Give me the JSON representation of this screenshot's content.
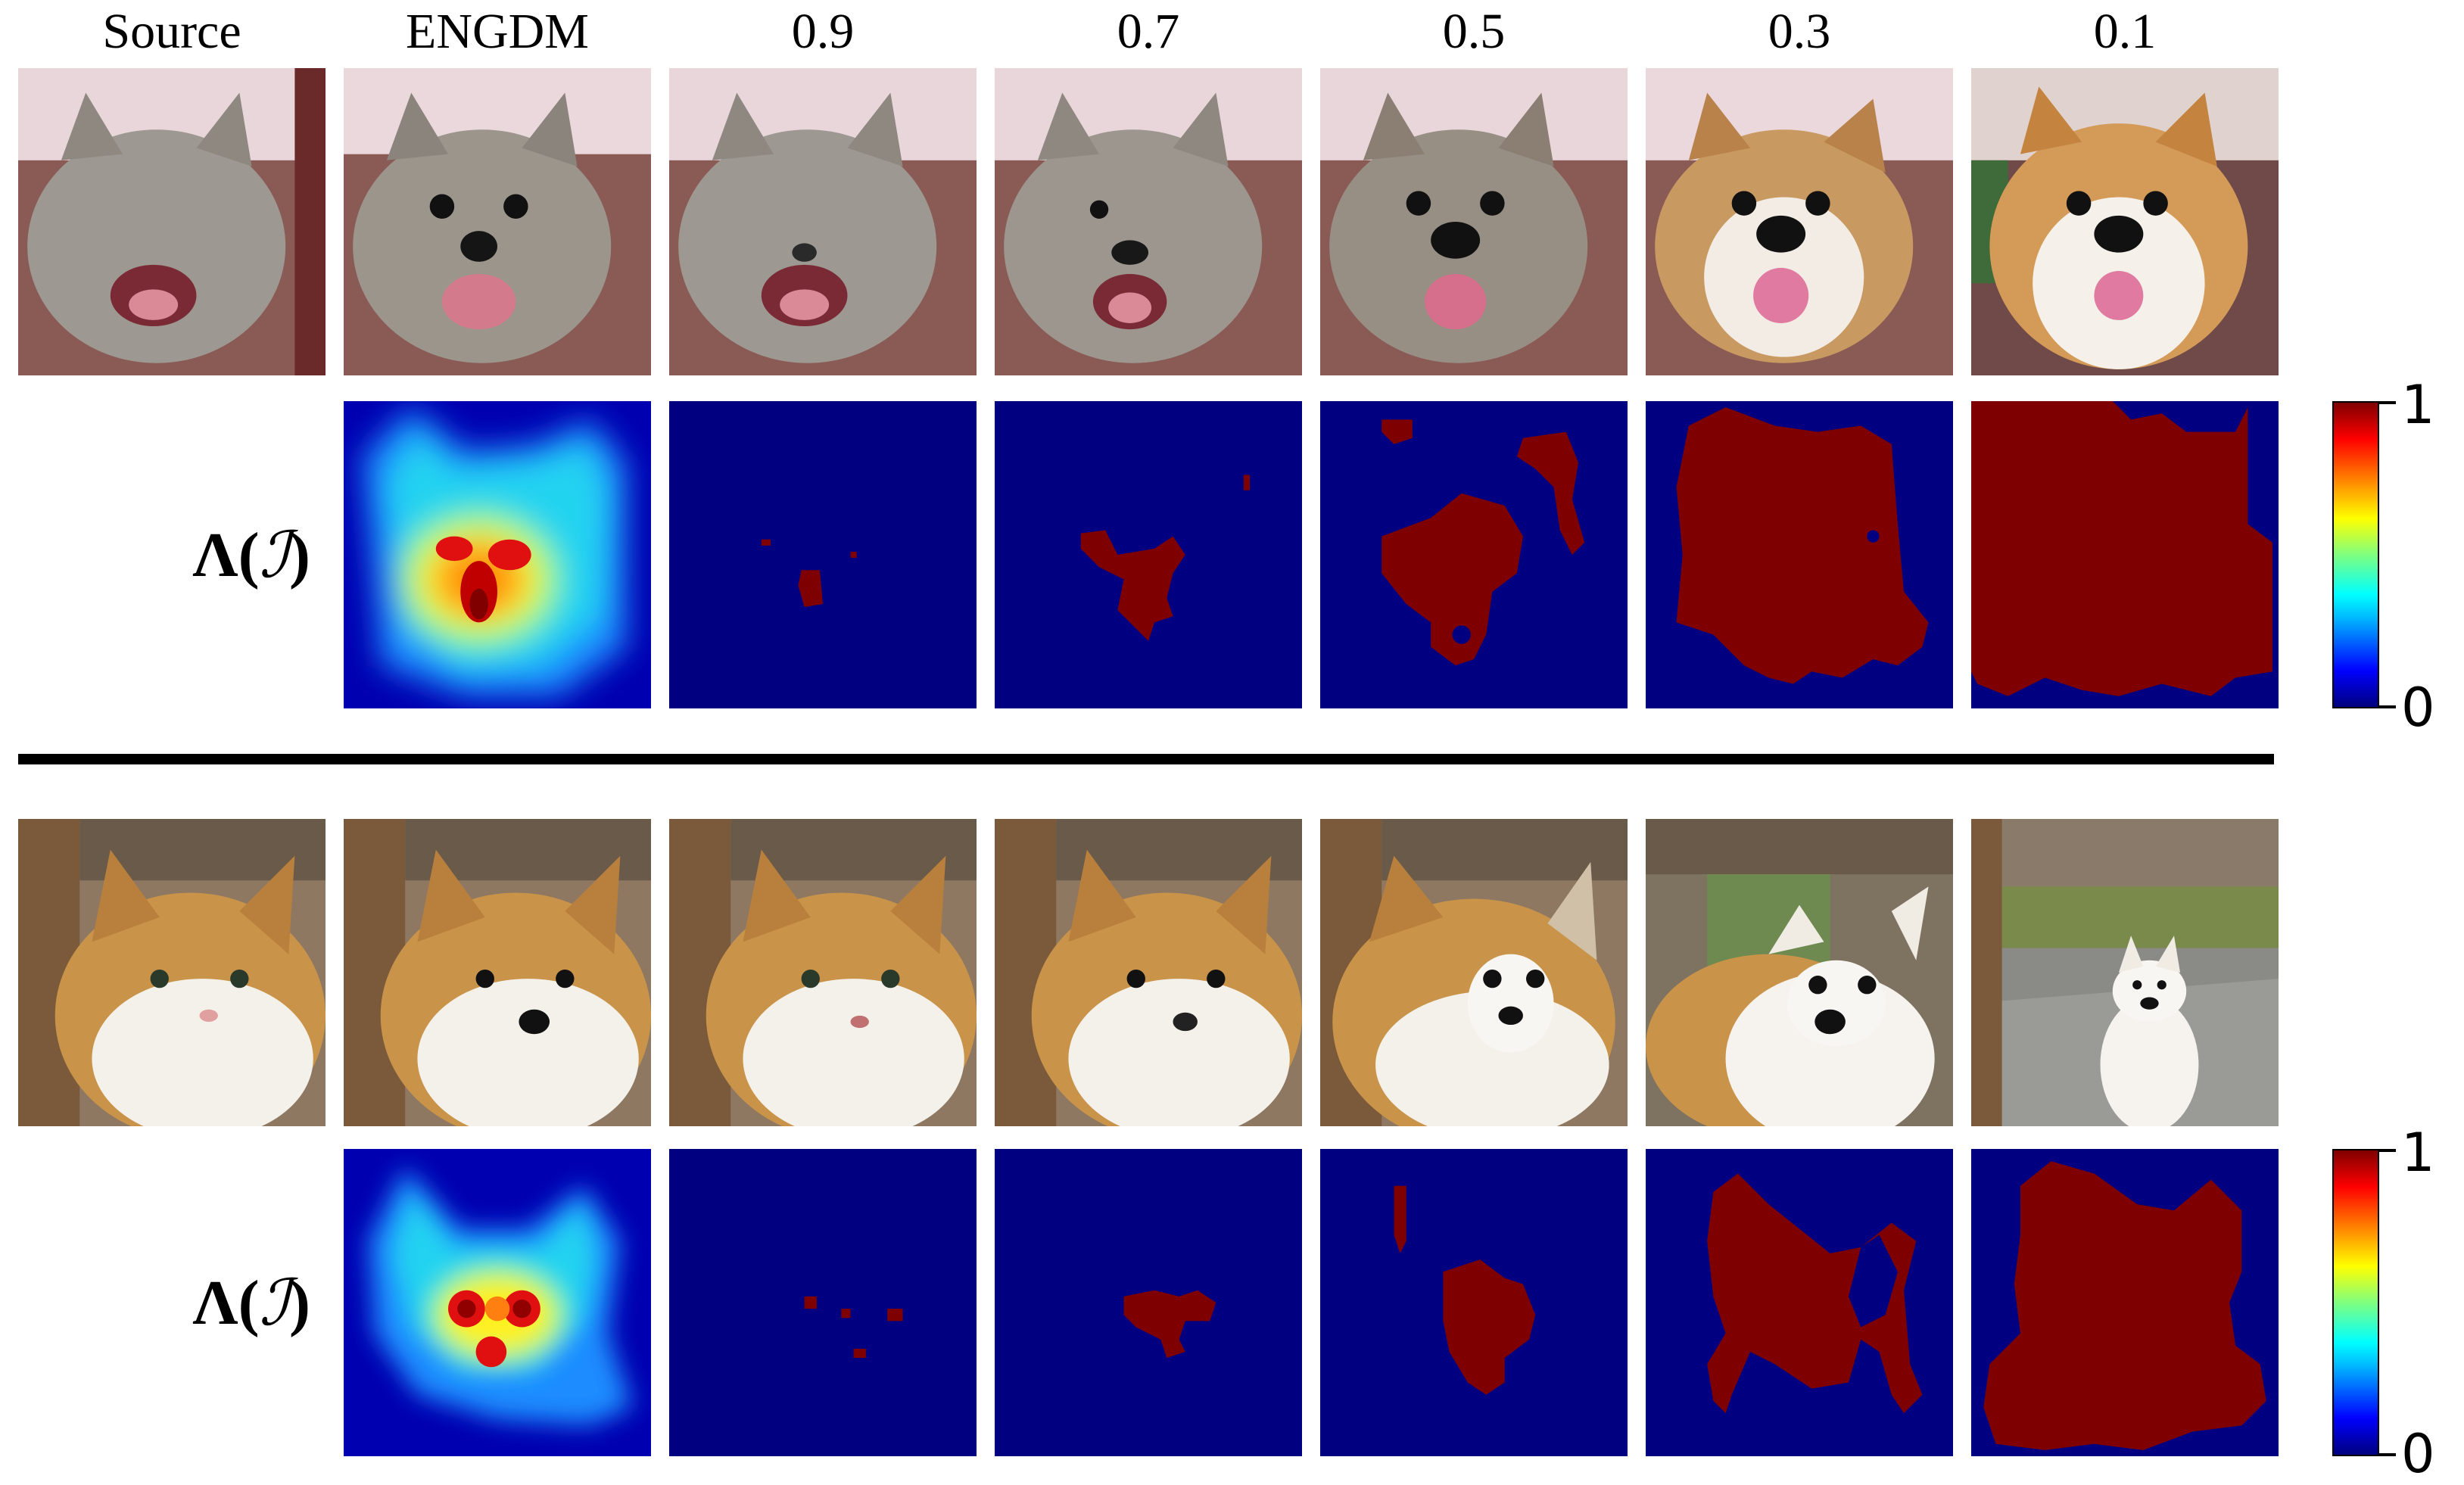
{
  "columns": [
    "Source",
    "ENGDM",
    "0.9",
    "0.7",
    "0.5",
    "0.3",
    "0.1"
  ],
  "row_label": {
    "bold": "Λ",
    "open": "(",
    "symbol": "ℐ",
    "close": ")"
  },
  "colorbar": {
    "max_label": "1",
    "min_label": "0"
  },
  "colors": {
    "mask_background": "#000080",
    "mask_region": "#7f0000",
    "separator": "#000000"
  }
}
